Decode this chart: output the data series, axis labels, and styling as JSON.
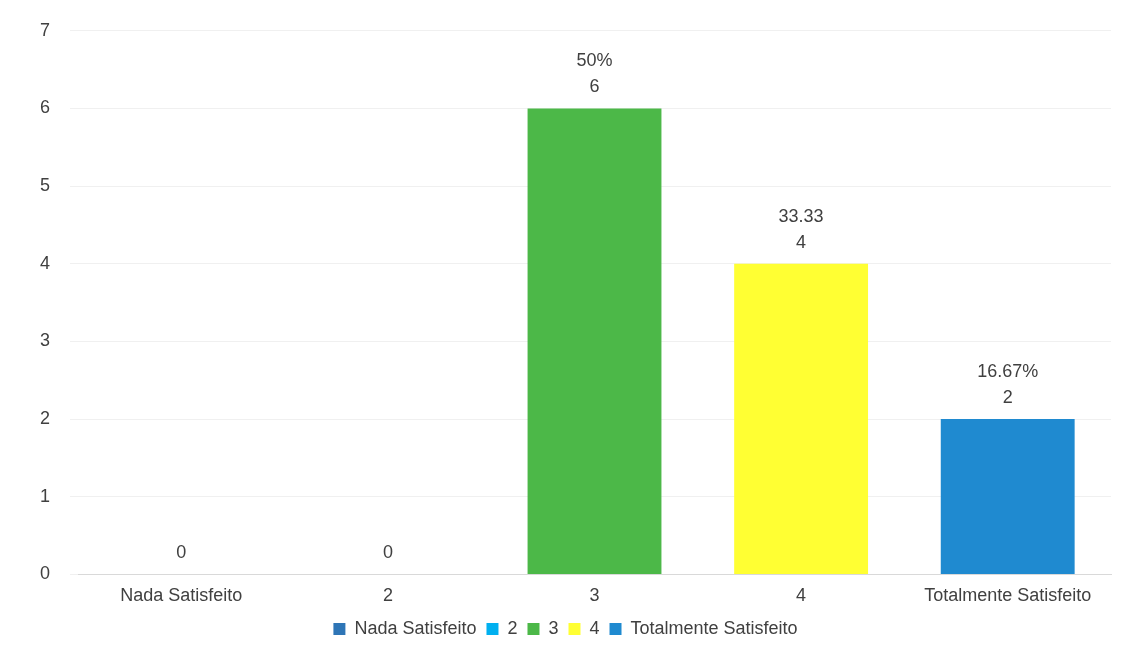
{
  "chart_data": {
    "type": "bar",
    "categories": [
      "Nada Satisfeito",
      "2",
      "3",
      "4",
      "Totalmente Satisfeito"
    ],
    "series": [
      {
        "name": "Nada Satisfeito",
        "color": "#2e75b6",
        "values": [
          0,
          null,
          null,
          null,
          null
        ],
        "value_labels": [
          "0",
          null,
          null,
          null,
          null
        ]
      },
      {
        "name": "2",
        "color": "#00b0f0",
        "values": [
          null,
          0,
          null,
          null,
          null
        ],
        "value_labels": [
          null,
          "0",
          null,
          null,
          null
        ]
      },
      {
        "name": "3",
        "color": "#4cb848",
        "values": [
          null,
          null,
          6,
          null,
          null
        ],
        "value_labels": [
          null,
          null,
          "50%\n6",
          null,
          null
        ]
      },
      {
        "name": "4",
        "color": "#ffff33",
        "values": [
          null,
          null,
          null,
          4,
          null
        ],
        "value_labels": [
          null,
          null,
          null,
          "33.33\n4",
          null
        ]
      },
      {
        "name": "Totalmente Satisfeito",
        "color": "#1f8ad0",
        "values": [
          null,
          null,
          null,
          null,
          2
        ],
        "value_labels": [
          null,
          null,
          null,
          null,
          "16.67%\n2"
        ]
      }
    ],
    "ylim": [
      0,
      7
    ],
    "yticks": [
      0,
      1,
      2,
      3,
      4,
      5,
      6,
      7
    ],
    "grid": "y",
    "legend": "bottom"
  }
}
